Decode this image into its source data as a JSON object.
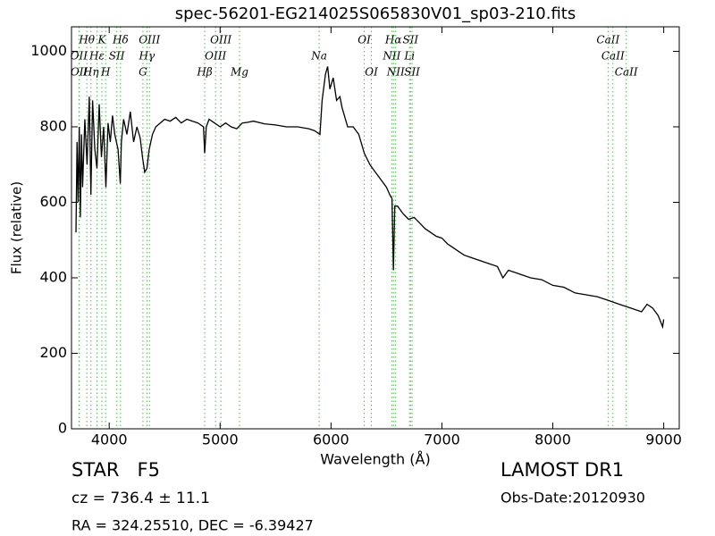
{
  "chart_data": {
    "type": "line",
    "title": "spec-56201-EG214025S065830V01_sp03-210.fits",
    "x_label": "Wavelength (Å)",
    "y_label": "Flux (relative)",
    "xlim": [
      3660,
      9140
    ],
    "ylim": [
      0,
      1065
    ],
    "xticks": [
      4000,
      5000,
      6000,
      7000,
      8000,
      9000
    ],
    "yticks": [
      0,
      200,
      400,
      600,
      800,
      1000
    ],
    "color": "#000000",
    "marker_color": "#4cbf4c",
    "x": [
      3700,
      3710,
      3720,
      3730,
      3740,
      3750,
      3760,
      3780,
      3800,
      3820,
      3835,
      3850,
      3870,
      3890,
      3910,
      3930,
      3950,
      3970,
      3990,
      4010,
      4030,
      4050,
      4080,
      4100,
      4110,
      4130,
      4160,
      4190,
      4220,
      4250,
      4280,
      4300,
      4320,
      4340,
      4360,
      4390,
      4420,
      4460,
      4500,
      4550,
      4600,
      4650,
      4700,
      4750,
      4800,
      4850,
      4861,
      4875,
      4900,
      4950,
      5000,
      5050,
      5100,
      5150,
      5200,
      5250,
      5300,
      5400,
      5500,
      5600,
      5700,
      5800,
      5850,
      5900,
      5920,
      5950,
      5970,
      5990,
      6020,
      6050,
      6080,
      6100,
      6150,
      6200,
      6250,
      6300,
      6350,
      6400,
      6450,
      6500,
      6530,
      6550,
      6563,
      6575,
      6600,
      6650,
      6700,
      6750,
      6800,
      6850,
      6900,
      6950,
      7000,
      7050,
      7100,
      7150,
      7200,
      7250,
      7300,
      7400,
      7500,
      7550,
      7600,
      7700,
      7800,
      7900,
      8000,
      8100,
      8200,
      8300,
      8400,
      8500,
      8600,
      8700,
      8800,
      8850,
      8900,
      8950,
      8990,
      9000
    ],
    "values": [
      520,
      760,
      600,
      800,
      560,
      780,
      640,
      820,
      700,
      880,
      620,
      870,
      740,
      690,
      860,
      720,
      800,
      640,
      810,
      760,
      830,
      780,
      740,
      650,
      760,
      820,
      780,
      840,
      760,
      800,
      770,
      720,
      680,
      690,
      740,
      780,
      800,
      810,
      820,
      815,
      825,
      810,
      820,
      815,
      810,
      800,
      730,
      800,
      820,
      810,
      800,
      810,
      800,
      795,
      810,
      812,
      815,
      808,
      805,
      800,
      800,
      795,
      790,
      780,
      870,
      940,
      960,
      900,
      930,
      870,
      880,
      850,
      800,
      800,
      780,
      730,
      700,
      680,
      660,
      640,
      620,
      610,
      420,
      590,
      590,
      570,
      555,
      560,
      545,
      530,
      520,
      510,
      505,
      490,
      480,
      470,
      460,
      455,
      450,
      440,
      430,
      400,
      420,
      410,
      400,
      395,
      380,
      375,
      360,
      355,
      350,
      340,
      330,
      320,
      310,
      330,
      320,
      300,
      270,
      290
    ],
    "spectral_lines": {
      "upper": [
        {
          "label": "Hθ",
          "wavelength": 3798
        },
        {
          "label": "K",
          "wavelength": 3934
        },
        {
          "label": "Hδ",
          "wavelength": 4102
        },
        {
          "label": "OIII",
          "wavelength": 4363
        },
        {
          "label": "OIII",
          "wavelength": 5007
        },
        {
          "label": "OI",
          "wavelength": 6300
        },
        {
          "label": "Hα",
          "wavelength": 6563
        },
        {
          "label": "SII",
          "wavelength": 6717
        },
        {
          "label": "CaII",
          "wavelength": 8498
        }
      ],
      "middle": [
        {
          "label": "OII",
          "wavelength": 3727
        },
        {
          "label": "Hε",
          "wavelength": 3889
        },
        {
          "label": "SII",
          "wavelength": 4068
        },
        {
          "label": "Hγ",
          "wavelength": 4340
        },
        {
          "label": "OIII",
          "wavelength": 4959
        },
        {
          "label": "Na",
          "wavelength": 5893
        },
        {
          "label": "NII",
          "wavelength": 6548
        },
        {
          "label": "Li",
          "wavelength": 6708
        },
        {
          "label": "CaII",
          "wavelength": 8542
        }
      ],
      "lower": [
        {
          "label": "OII",
          "wavelength": 3729
        },
        {
          "label": "Hη",
          "wavelength": 3835
        },
        {
          "label": "H",
          "wavelength": 3968
        },
        {
          "label": "G",
          "wavelength": 4304
        },
        {
          "label": "Hβ",
          "wavelength": 4861
        },
        {
          "label": "Mg",
          "wavelength": 5175
        },
        {
          "label": "OI",
          "wavelength": 6364
        },
        {
          "label": "NII",
          "wavelength": 6583
        },
        {
          "label": "SII",
          "wavelength": 6731
        },
        {
          "label": "CaII",
          "wavelength": 8662
        }
      ]
    },
    "info": {
      "class": "STAR   F5",
      "redshift": "cz = 736.4 ± 11.1",
      "coords": "RA = 324.25510, DEC = -6.39427",
      "survey": "LAMOST DR1",
      "date": "Obs-Date:20120930"
    }
  }
}
